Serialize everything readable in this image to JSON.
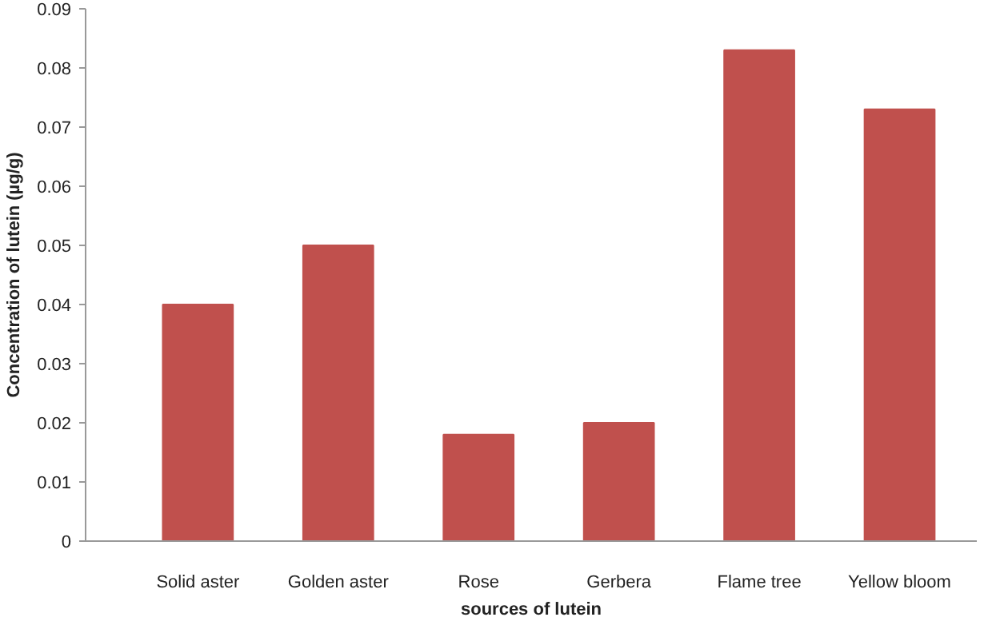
{
  "chart_data": {
    "type": "bar",
    "xlabel": "sources of lutein",
    "ylabel": "Concentration of lutein (µg/g)",
    "categories": [
      "Solid aster",
      "Golden aster",
      "Rose",
      "Gerbera",
      "Flame tree",
      "Yellow bloom"
    ],
    "values": [
      0.04,
      0.05,
      0.018,
      0.02,
      0.083,
      0.073
    ],
    "color": "#c0504d",
    "ylim": [
      0,
      0.09
    ],
    "yticks": [
      0,
      0.01,
      0.02,
      0.03,
      0.04,
      0.05,
      0.06,
      0.07,
      0.08,
      0.09
    ]
  }
}
